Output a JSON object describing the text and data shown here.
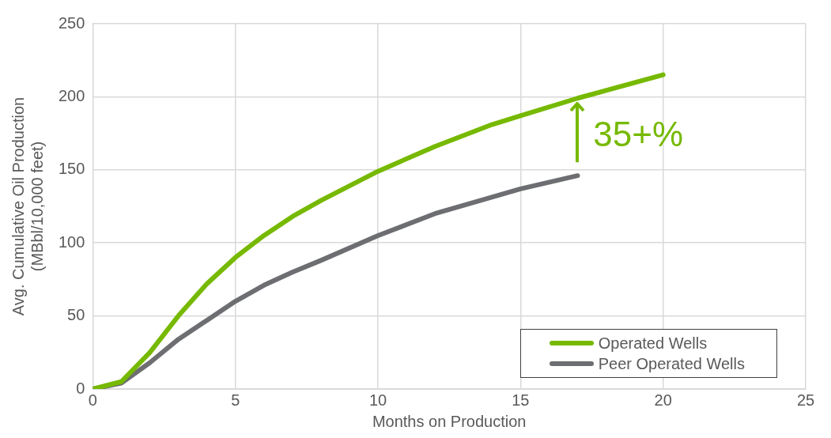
{
  "chart_data": {
    "type": "line",
    "xlabel": "Months on Production",
    "ylabel": "Avg. Cumulative Oil Production\n(MBbl/10,000 feet)",
    "xlim": [
      0,
      25
    ],
    "xticks": [
      0,
      5,
      10,
      15,
      20,
      25
    ],
    "ylim": [
      0,
      250
    ],
    "yticks": [
      0,
      50,
      100,
      150,
      200,
      250
    ],
    "grid": true,
    "legend": "bottom right",
    "marker": "none",
    "line_style": "solid",
    "annotations": [
      "35+%"
    ],
    "series": [
      {
        "name": "Operated Wells",
        "color": "#76b900",
        "x": [
          0,
          1,
          2,
          3,
          4,
          5,
          6,
          7,
          8,
          9,
          10,
          12,
          14,
          15,
          17,
          20
        ],
        "values": [
          0,
          5,
          25,
          50,
          72,
          90,
          105,
          118,
          129,
          139,
          149,
          166,
          181,
          187,
          199,
          215
        ]
      },
      {
        "name": "Peer Operated Wells",
        "color": "#6d6e71",
        "x": [
          0,
          1,
          2,
          3,
          4,
          5,
          6,
          7,
          8,
          10,
          12,
          15,
          17
        ],
        "values": [
          0,
          4,
          18,
          34,
          47,
          60,
          71,
          80,
          88,
          105,
          120,
          137,
          146
        ]
      }
    ]
  }
}
